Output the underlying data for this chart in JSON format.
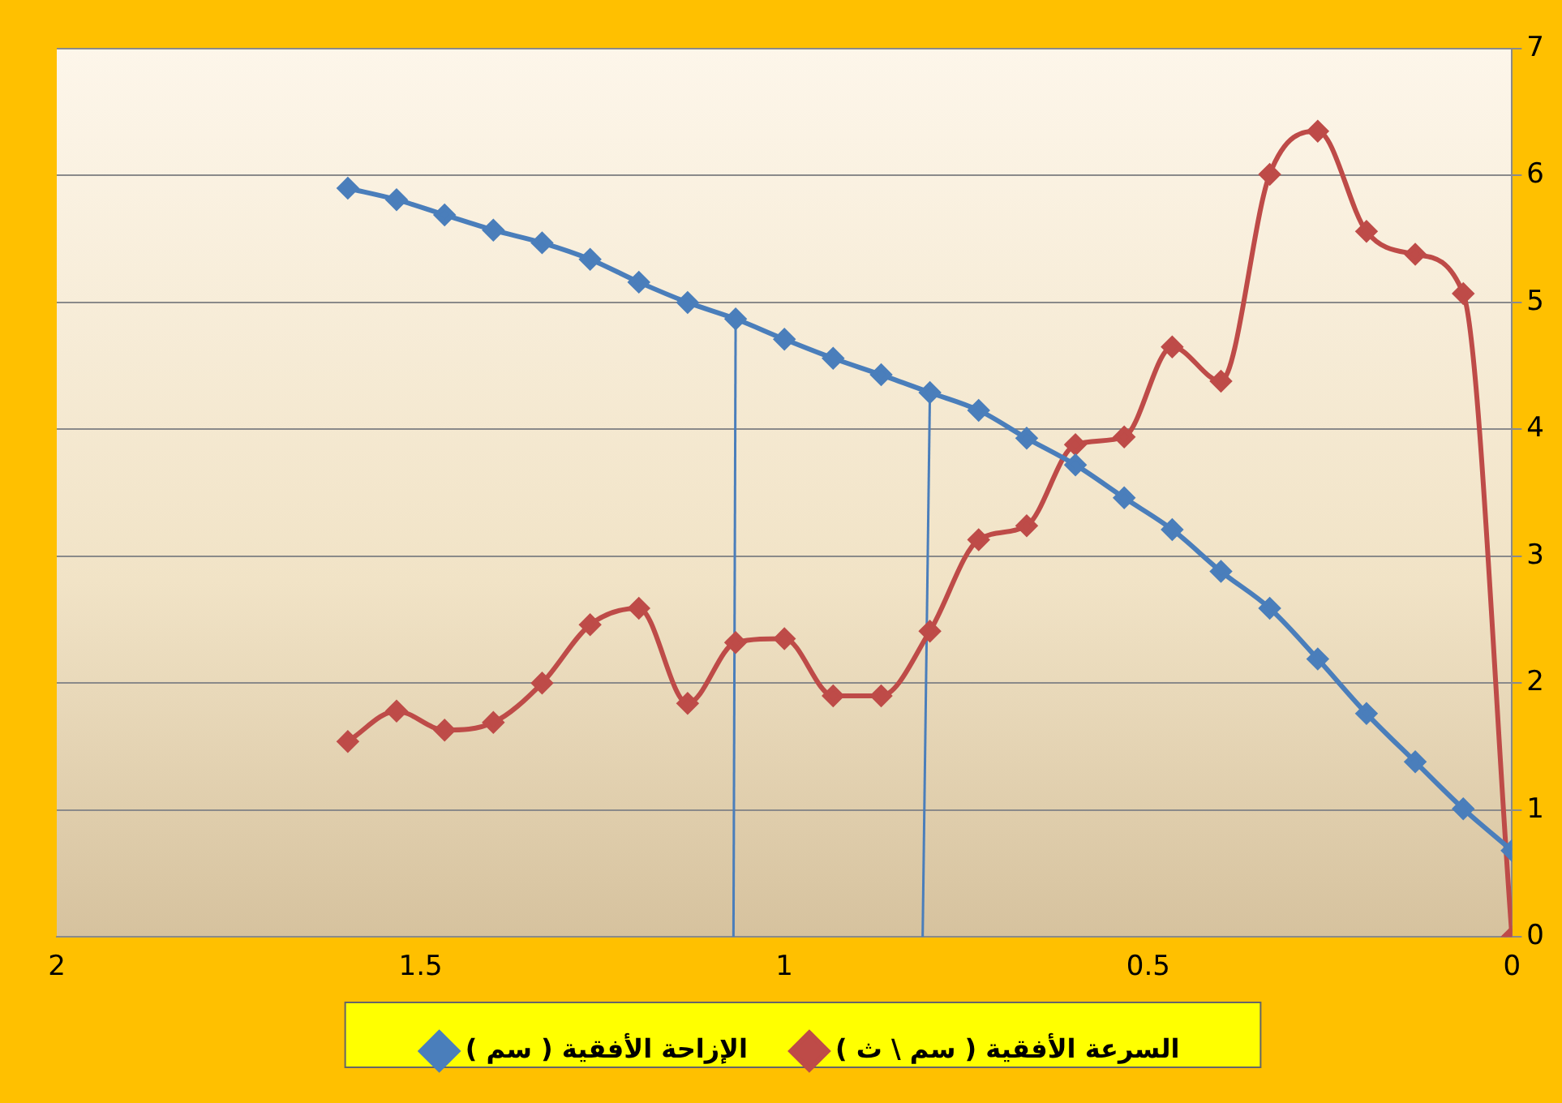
{
  "chart_data": {
    "type": "line",
    "x": [
      1.6,
      1.533,
      1.467,
      1.4,
      1.333,
      1.267,
      1.2,
      1.133,
      1.067,
      1.0,
      0.933,
      0.867,
      0.8,
      0.733,
      0.667,
      0.6,
      0.533,
      0.467,
      0.4,
      0.333,
      0.267,
      0.2,
      0.133,
      0.067,
      0
    ],
    "series": [
      {
        "name": "الإزاحة الأفقية ( سم )",
        "color": "#4a7ebb",
        "values": [
          5.9,
          5.81,
          5.69,
          5.57,
          5.47,
          5.34,
          5.16,
          5.0,
          4.87,
          4.71,
          4.56,
          4.43,
          4.29,
          4.15,
          3.93,
          3.72,
          3.46,
          3.21,
          2.88,
          2.59,
          2.19,
          1.76,
          1.38,
          1.01,
          0.68
        ]
      },
      {
        "name": "السرعة الأفقية ( سم \\ ث )",
        "color": "#be4b48",
        "values": [
          1.54,
          1.78,
          1.63,
          1.69,
          2.0,
          2.46,
          2.59,
          1.84,
          2.32,
          2.35,
          1.9,
          1.9,
          2.41,
          3.13,
          3.24,
          3.88,
          3.94,
          4.65,
          4.38,
          6.01,
          6.35,
          5.56,
          5.38,
          5.07,
          0
        ]
      },
      {
        "color": "#4a7ebb",
        "x": [
          1.07,
          1.067
        ],
        "values": [
          0,
          4.87
        ],
        "marker": "none"
      },
      {
        "color": "#4a7ebb",
        "x": [
          0.81,
          0.8
        ],
        "values": [
          0,
          4.29
        ],
        "marker": "none"
      }
    ],
    "xlim": [
      2,
      0
    ],
    "xticks": [
      2,
      1.5,
      1,
      0.5,
      0
    ],
    "ylim": [
      0,
      7
    ],
    "yticks": [
      0,
      1,
      2,
      3,
      4,
      5,
      6,
      7
    ],
    "grid": "y",
    "legend": "bottom",
    "marker": "diamond"
  }
}
